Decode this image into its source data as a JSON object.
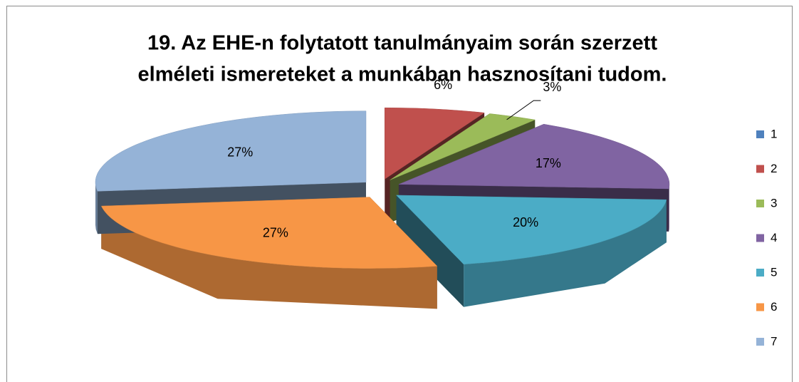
{
  "chart_data": {
    "type": "pie",
    "title": [
      "19. Az EHE-n folytatott tanulmányaim során szerzett",
      "elméleti ismereteket a munkában hasznosítani tudom."
    ],
    "categories": [
      "1",
      "2",
      "3",
      "4",
      "5",
      "6",
      "7"
    ],
    "values": [
      0,
      6,
      3,
      17,
      20,
      27,
      27
    ],
    "value_labels": [
      null,
      "6%",
      "3%",
      "17%",
      "20%",
      "27%",
      "27%"
    ],
    "colors": [
      "#4f81bd",
      "#c0504d",
      "#9bbb59",
      "#8064a2",
      "#4bacc6",
      "#f79646",
      "#95b3d7"
    ],
    "legend": "right"
  }
}
